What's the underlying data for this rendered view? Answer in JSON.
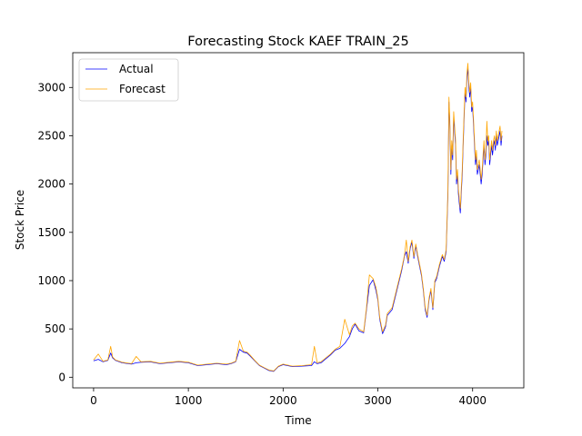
{
  "chart_data": {
    "type": "line",
    "title": "Forecasting Stock KAEF TRAIN_25",
    "xlabel": "Time",
    "ylabel": "Stock Price",
    "xlim": [
      -220,
      4540
    ],
    "ylim": [
      -110,
      3360
    ],
    "x_ticks": [
      0,
      1000,
      2000,
      3000,
      4000
    ],
    "y_ticks": [
      0,
      500,
      1000,
      1500,
      2000,
      2500,
      3000
    ],
    "grid": false,
    "legend_position": "upper left",
    "series": [
      {
        "name": "Actual",
        "color": "#0000ff",
        "x": [
          0,
          50,
          100,
          150,
          180,
          200,
          230,
          300,
          400,
          450,
          500,
          600,
          700,
          800,
          900,
          1000,
          1100,
          1200,
          1300,
          1400,
          1450,
          1500,
          1540,
          1580,
          1620,
          1650,
          1700,
          1750,
          1800,
          1850,
          1900,
          1950,
          2000,
          2100,
          2200,
          2300,
          2330,
          2360,
          2400,
          2450,
          2500,
          2550,
          2600,
          2650,
          2700,
          2730,
          2760,
          2800,
          2850,
          2880,
          2910,
          2950,
          2980,
          3000,
          3020,
          3050,
          3080,
          3100,
          3150,
          3200,
          3250,
          3280,
          3300,
          3320,
          3340,
          3360,
          3380,
          3400,
          3420,
          3440,
          3460,
          3480,
          3500,
          3520,
          3540,
          3560,
          3580,
          3600,
          3620,
          3650,
          3680,
          3700,
          3720,
          3740,
          3750,
          3760,
          3770,
          3780,
          3790,
          3800,
          3810,
          3820,
          3830,
          3840,
          3850,
          3860,
          3870,
          3880,
          3890,
          3900,
          3910,
          3920,
          3930,
          3940,
          3950,
          3960,
          3970,
          3980,
          3990,
          4000,
          4010,
          4020,
          4030,
          4040,
          4050,
          4060,
          4070,
          4080,
          4090,
          4100,
          4110,
          4120,
          4130,
          4140,
          4150,
          4160,
          4170,
          4180,
          4190,
          4200,
          4210,
          4220,
          4230,
          4240,
          4250,
          4260,
          4270,
          4280,
          4290,
          4300,
          4310
        ],
        "y": [
          170,
          185,
          160,
          175,
          250,
          200,
          175,
          150,
          135,
          150,
          155,
          160,
          140,
          150,
          160,
          150,
          120,
          130,
          140,
          130,
          140,
          160,
          290,
          260,
          250,
          220,
          170,
          120,
          95,
          70,
          60,
          110,
          130,
          110,
          115,
          120,
          160,
          140,
          150,
          190,
          230,
          280,
          300,
          350,
          420,
          500,
          550,
          480,
          460,
          700,
          950,
          1010,
          900,
          800,
          600,
          450,
          520,
          640,
          700,
          900,
          1100,
          1250,
          1300,
          1180,
          1330,
          1400,
          1230,
          1360,
          1250,
          1150,
          1050,
          900,
          700,
          620,
          800,
          900,
          700,
          980,
          1020,
          1150,
          1250,
          1200,
          1300,
          1900,
          2850,
          2600,
          2100,
          2400,
          2250,
          2700,
          2550,
          2400,
          2000,
          2100,
          1900,
          1800,
          1700,
          1900,
          2100,
          2400,
          2700,
          2950,
          2850,
          3100,
          3200,
          3000,
          2900,
          3000,
          2750,
          2800,
          2600,
          2400,
          2200,
          2300,
          2100,
          2150,
          2200,
          2100,
          2000,
          2100,
          2250,
          2400,
          2200,
          2300,
          2500,
          2400,
          2450,
          2200,
          2300,
          2400,
          2300,
          2400,
          2450,
          2350,
          2500,
          2400,
          2450,
          2500,
          2550,
          2400,
          2500
        ]
      },
      {
        "name": "Forecast",
        "color": "#ffa500",
        "x": [
          0,
          50,
          100,
          150,
          180,
          200,
          230,
          300,
          400,
          450,
          500,
          600,
          700,
          800,
          900,
          1000,
          1100,
          1200,
          1300,
          1400,
          1450,
          1500,
          1540,
          1580,
          1620,
          1650,
          1700,
          1750,
          1800,
          1850,
          1900,
          1950,
          2000,
          2100,
          2200,
          2300,
          2330,
          2360,
          2400,
          2450,
          2500,
          2550,
          2600,
          2650,
          2700,
          2730,
          2760,
          2800,
          2850,
          2880,
          2910,
          2950,
          2980,
          3000,
          3020,
          3050,
          3080,
          3100,
          3150,
          3200,
          3250,
          3280,
          3300,
          3320,
          3340,
          3360,
          3380,
          3400,
          3420,
          3440,
          3460,
          3480,
          3500,
          3520,
          3540,
          3560,
          3580,
          3600,
          3620,
          3650,
          3680,
          3700,
          3720,
          3740,
          3750,
          3760,
          3770,
          3780,
          3790,
          3800,
          3810,
          3820,
          3830,
          3840,
          3850,
          3860,
          3870,
          3880,
          3890,
          3900,
          3910,
          3920,
          3930,
          3940,
          3950,
          3960,
          3970,
          3980,
          3990,
          4000,
          4010,
          4020,
          4030,
          4040,
          4050,
          4060,
          4070,
          4080,
          4090,
          4100,
          4110,
          4120,
          4130,
          4140,
          4150,
          4160,
          4170,
          4180,
          4190,
          4200,
          4210,
          4220,
          4230,
          4240,
          4250,
          4260,
          4270,
          4280,
          4290,
          4300,
          4310
        ],
        "y": [
          180,
          240,
          165,
          180,
          320,
          210,
          180,
          155,
          140,
          215,
          160,
          165,
          145,
          155,
          165,
          155,
          125,
          135,
          145,
          135,
          145,
          165,
          380,
          270,
          260,
          230,
          175,
          125,
          100,
          75,
          65,
          115,
          135,
          115,
          120,
          130,
          320,
          150,
          160,
          200,
          240,
          290,
          320,
          600,
          440,
          530,
          560,
          500,
          470,
          720,
          1060,
          1020,
          930,
          820,
          620,
          470,
          540,
          660,
          720,
          920,
          1120,
          1260,
          1420,
          1200,
          1350,
          1420,
          1250,
          1380,
          1270,
          1170,
          1070,
          920,
          720,
          640,
          820,
          920,
          720,
          1000,
          1040,
          1170,
          1270,
          1220,
          1320,
          1950,
          2900,
          2650,
          2150,
          2450,
          2300,
          2750,
          2600,
          2450,
          2050,
          2150,
          1950,
          1850,
          1750,
          1950,
          2150,
          2450,
          2750,
          3000,
          2900,
          3150,
          3250,
          3050,
          2950,
          3050,
          2800,
          2850,
          2650,
          2450,
          2250,
          2350,
          2150,
          2200,
          2250,
          2150,
          2050,
          2150,
          2300,
          2450,
          2250,
          2350,
          2650,
          2450,
          2500,
          2250,
          2350,
          2450,
          2350,
          2450,
          2500,
          2400,
          2550,
          2450,
          2500,
          2550,
          2600,
          2450,
          2550
        ]
      }
    ]
  }
}
